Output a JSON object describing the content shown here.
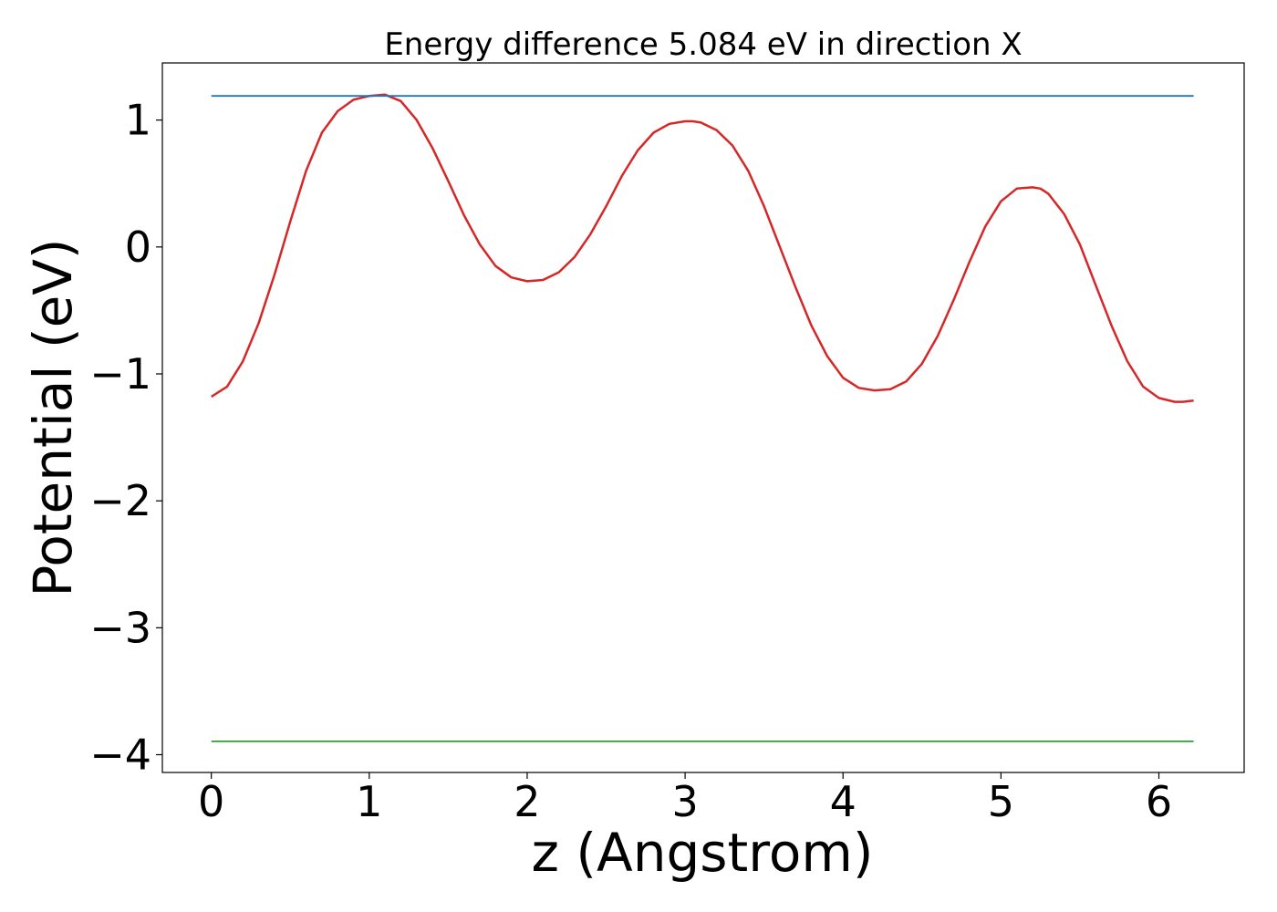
{
  "chart_data": {
    "type": "line",
    "title": "Energy difference 5.084 eV in direction X",
    "xlabel": "z (Angstrom)",
    "ylabel": "Potential (eV)",
    "xlim": [
      -0.31,
      6.54
    ],
    "ylim": [
      -4.14,
      1.45
    ],
    "xticks": [
      0,
      1,
      2,
      3,
      4,
      5,
      6
    ],
    "xtick_labels": [
      "0",
      "1",
      "2",
      "3",
      "4",
      "5",
      "6"
    ],
    "yticks": [
      1,
      0,
      -1,
      -2,
      -3,
      -4
    ],
    "ytick_labels": [
      "1",
      "0",
      "−1",
      "−2",
      "−3",
      "−4"
    ],
    "grid": false,
    "series": [
      {
        "color": "#d62728",
        "x": [
          0,
          0.1,
          0.2,
          0.3,
          0.4,
          0.5,
          0.6,
          0.7,
          0.8,
          0.9,
          1.0,
          1.1,
          1.2,
          1.3,
          1.4,
          1.5,
          1.6,
          1.7,
          1.8,
          1.9,
          2.0,
          2.1,
          2.2,
          2.3,
          2.4,
          2.5,
          2.6,
          2.7,
          2.8,
          2.9,
          3.0,
          3.05,
          3.1,
          3.2,
          3.3,
          3.4,
          3.5,
          3.6,
          3.7,
          3.8,
          3.9,
          4.0,
          4.1,
          4.2,
          4.3,
          4.4,
          4.5,
          4.6,
          4.7,
          4.8,
          4.9,
          5.0,
          5.1,
          5.2,
          5.25,
          5.3,
          5.4,
          5.5,
          5.6,
          5.7,
          5.8,
          5.9,
          6.0,
          6.1,
          6.15,
          6.22
        ],
        "y": [
          -1.18,
          -1.1,
          -0.9,
          -0.6,
          -0.22,
          0.2,
          0.6,
          0.9,
          1.07,
          1.16,
          1.19,
          1.2,
          1.15,
          1.0,
          0.78,
          0.52,
          0.25,
          0.02,
          -0.15,
          -0.24,
          -0.27,
          -0.26,
          -0.2,
          -0.08,
          0.1,
          0.32,
          0.56,
          0.76,
          0.9,
          0.97,
          0.99,
          0.99,
          0.98,
          0.92,
          0.8,
          0.6,
          0.32,
          0.0,
          -0.32,
          -0.62,
          -0.86,
          -1.03,
          -1.11,
          -1.13,
          -1.12,
          -1.06,
          -0.92,
          -0.7,
          -0.42,
          -0.12,
          0.16,
          0.36,
          0.46,
          0.47,
          0.46,
          0.42,
          0.26,
          0.02,
          -0.3,
          -0.62,
          -0.9,
          -1.1,
          -1.19,
          -1.22,
          -1.22,
          -1.21
        ]
      },
      {
        "color": "#1f77b4",
        "x": [
          0,
          6.22
        ],
        "y": [
          1.19,
          1.19
        ]
      },
      {
        "color": "#2ca02c",
        "x": [
          0,
          6.22
        ],
        "y": [
          -3.895,
          -3.895
        ]
      }
    ]
  }
}
